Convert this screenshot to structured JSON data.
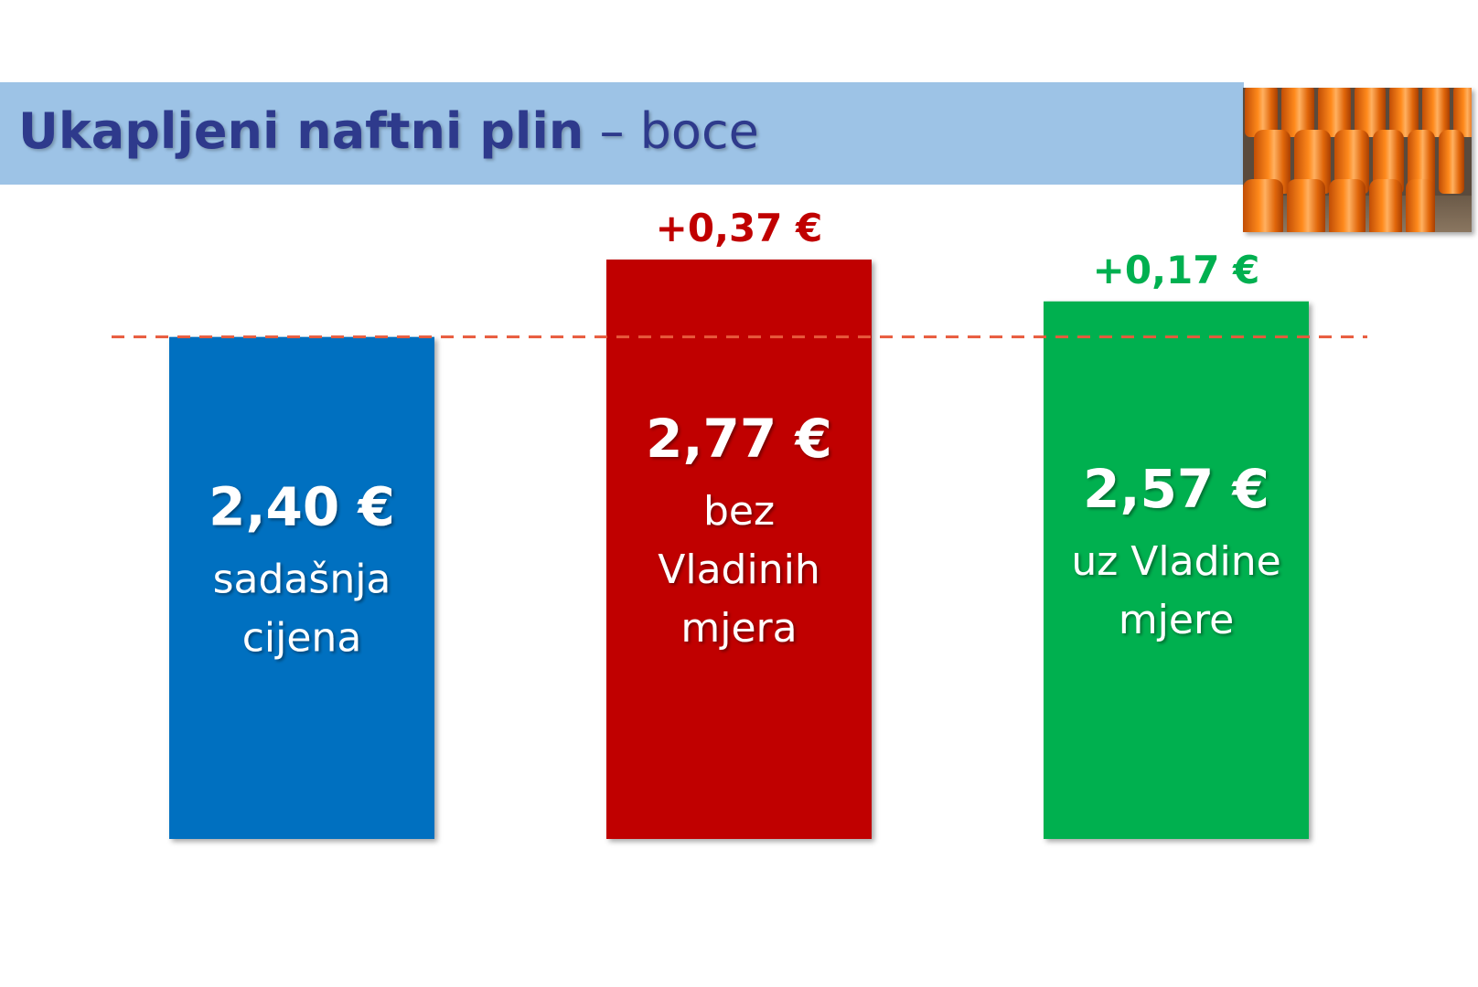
{
  "title": {
    "bold": "Ukapljeni naftni plin",
    "rest": "– boce"
  },
  "photo": {
    "description_icon": "gas-cylinders-photo"
  },
  "colors": {
    "title_bar": "#9dc3e6",
    "title_text": "#2e3a8c",
    "reference_line": "#e85a3c"
  },
  "chart_data": {
    "type": "bar",
    "unit": "€",
    "reference_value": 2.4,
    "reference_line_style": "dashed",
    "ylim": [
      0,
      2.9
    ],
    "bars": [
      {
        "value": 2.4,
        "value_label": "2,40 €",
        "sub_label_lines": [
          "sadašnja",
          "cijena"
        ],
        "delta_label": "",
        "color": "#0070c0",
        "delta_color": ""
      },
      {
        "value": 2.77,
        "value_label": "2,77 €",
        "sub_label_lines": [
          "bez",
          "Vladinih",
          "mjera"
        ],
        "delta_label": "+0,37 €",
        "color": "#c00000",
        "delta_color": "#c00000"
      },
      {
        "value": 2.57,
        "value_label": "2,57 €",
        "sub_label_lines": [
          "uz Vladine",
          "mjere"
        ],
        "delta_label": "+0,17 €",
        "color": "#00b050",
        "delta_color": "#00b050"
      }
    ]
  }
}
